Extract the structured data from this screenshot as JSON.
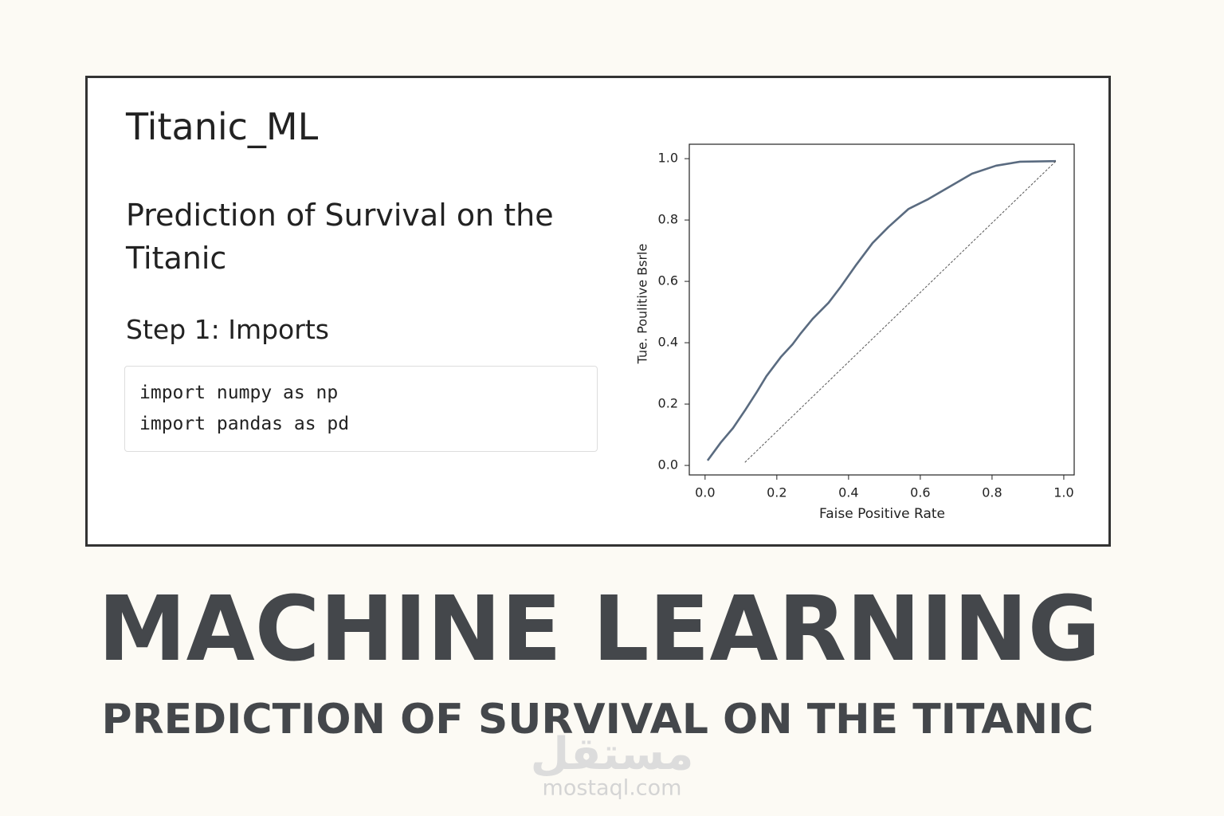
{
  "notebook": {
    "title": "Titanic_ML",
    "heading": "Prediction of Survival on the Titanic",
    "step": "Step 1: Imports",
    "code": [
      "import numpy as np",
      "import pandas as pd"
    ]
  },
  "chart_data": {
    "type": "line",
    "xlabel": "Faise Positive Rate",
    "ylabel": "Tue. Poulitive Bsrle",
    "xlim": [
      -0.044,
      1.029
    ],
    "ylim": [
      -0.031,
      1.047
    ],
    "xticks": [
      {
        "value": 0,
        "label": "0.0"
      },
      {
        "value": 0.2,
        "label": "0.2"
      },
      {
        "value": 0.4,
        "label": "0.4"
      },
      {
        "value": 0.6,
        "label": "0.6"
      },
      {
        "value": 0.8,
        "label": "0.8"
      },
      {
        "value": 1,
        "label": "1.0"
      }
    ],
    "yticks": [
      {
        "value": 0,
        "label": "0.0"
      },
      {
        "value": 0.2,
        "label": "0.2"
      },
      {
        "value": 0.4,
        "label": "0.4"
      },
      {
        "value": 0.6,
        "label": "0.6"
      },
      {
        "value": 0.8,
        "label": "0.8"
      },
      {
        "value": 1,
        "label": "1.0"
      }
    ],
    "grid": false,
    "series": [
      {
        "color": "#5a6b80",
        "style": "solid",
        "x": [
          0.007,
          0.044,
          0.078,
          0.111,
          0.144,
          0.171,
          0.211,
          0.244,
          0.267,
          0.3,
          0.344,
          0.378,
          0.422,
          0.467,
          0.511,
          0.567,
          0.622,
          0.678,
          0.744,
          0.811,
          0.878,
          0.978
        ],
        "values": [
          0.016,
          0.075,
          0.122,
          0.179,
          0.239,
          0.291,
          0.353,
          0.395,
          0.431,
          0.478,
          0.53,
          0.582,
          0.655,
          0.725,
          0.777,
          0.836,
          0.868,
          0.906,
          0.951,
          0.977,
          0.99,
          0.992
        ]
      },
      {
        "color": "#555555",
        "style": "dashed",
        "x": [
          0.111,
          0.978
        ],
        "values": [
          0.01,
          0.992
        ]
      }
    ]
  },
  "banner": {
    "title": "MACHINE LEARNING",
    "subtitle": "PREDICTION OF SURVIVAL ON THE TITANIC"
  },
  "watermark": {
    "logo": "مستقل",
    "site": "mostaql.com"
  }
}
